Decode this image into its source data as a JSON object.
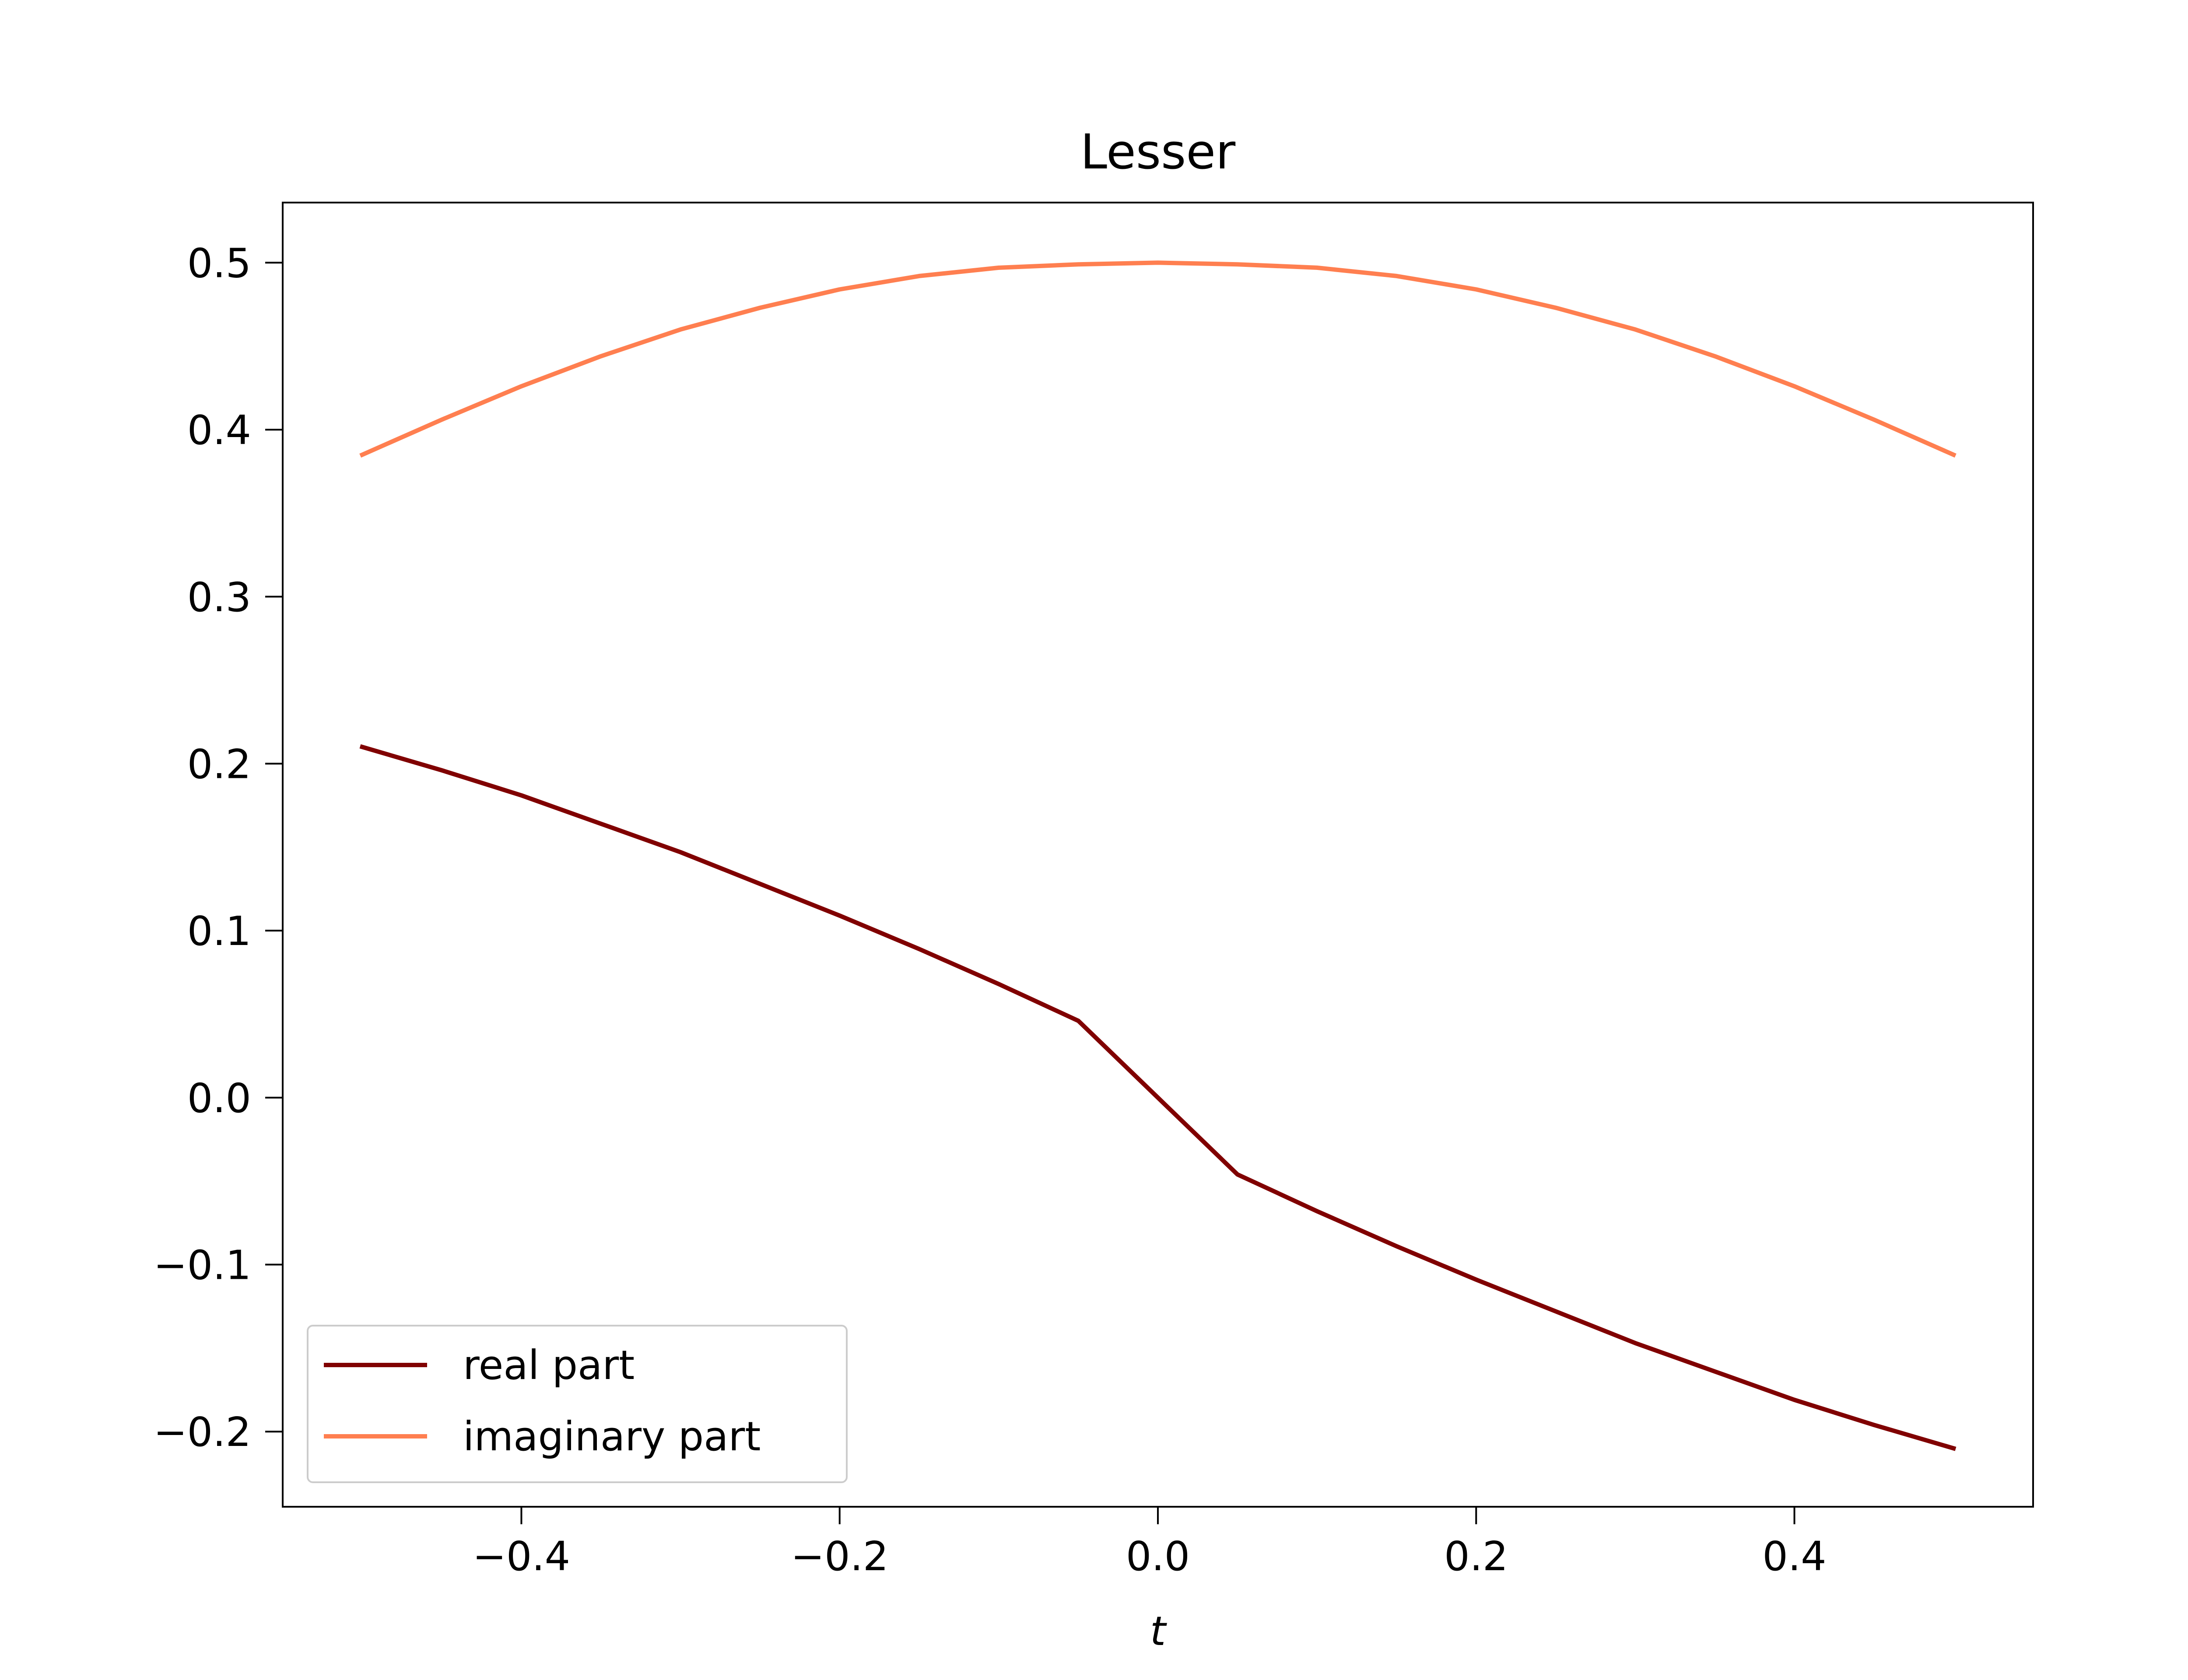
{
  "chart_data": {
    "type": "line",
    "title": "Lesser",
    "xlabel": "t",
    "ylabel": "",
    "xlim": [
      -0.55,
      0.55
    ],
    "ylim": [
      -0.245,
      0.536
    ],
    "xticks": [
      -0.4,
      -0.2,
      0.0,
      0.2,
      0.4
    ],
    "xtick_labels": [
      "−0.4",
      "−0.2",
      "0.0",
      "0.2",
      "0.4"
    ],
    "yticks": [
      -0.2,
      -0.1,
      0.0,
      0.1,
      0.2,
      0.3,
      0.4,
      0.5
    ],
    "ytick_labels": [
      "−0.2",
      "−0.1",
      "0.0",
      "0.1",
      "0.2",
      "0.3",
      "0.4",
      "0.5"
    ],
    "grid": false,
    "legend_position": "lower-left",
    "x": [
      -0.5,
      -0.45,
      -0.4,
      -0.35,
      -0.3,
      -0.25,
      -0.2,
      -0.15,
      -0.1,
      -0.05,
      0.0,
      0.05,
      0.1,
      0.15,
      0.2,
      0.25,
      0.3,
      0.35,
      0.4,
      0.45,
      0.5
    ],
    "series": [
      {
        "name": "real part",
        "color": "#800000",
        "values": [
          0.21,
          0.196,
          0.181,
          0.164,
          0.147,
          0.128,
          0.109,
          0.089,
          0.068,
          0.046,
          0.0,
          -0.046,
          -0.068,
          -0.089,
          -0.109,
          -0.128,
          -0.147,
          -0.164,
          -0.181,
          -0.196,
          -0.21
        ]
      },
      {
        "name": "imaginary part",
        "color": "#ff7f50",
        "values": [
          0.385,
          0.406,
          0.426,
          0.444,
          0.46,
          0.473,
          0.484,
          0.492,
          0.497,
          0.499,
          0.5,
          0.499,
          0.497,
          0.492,
          0.484,
          0.473,
          0.46,
          0.444,
          0.426,
          0.406,
          0.385
        ]
      }
    ]
  }
}
